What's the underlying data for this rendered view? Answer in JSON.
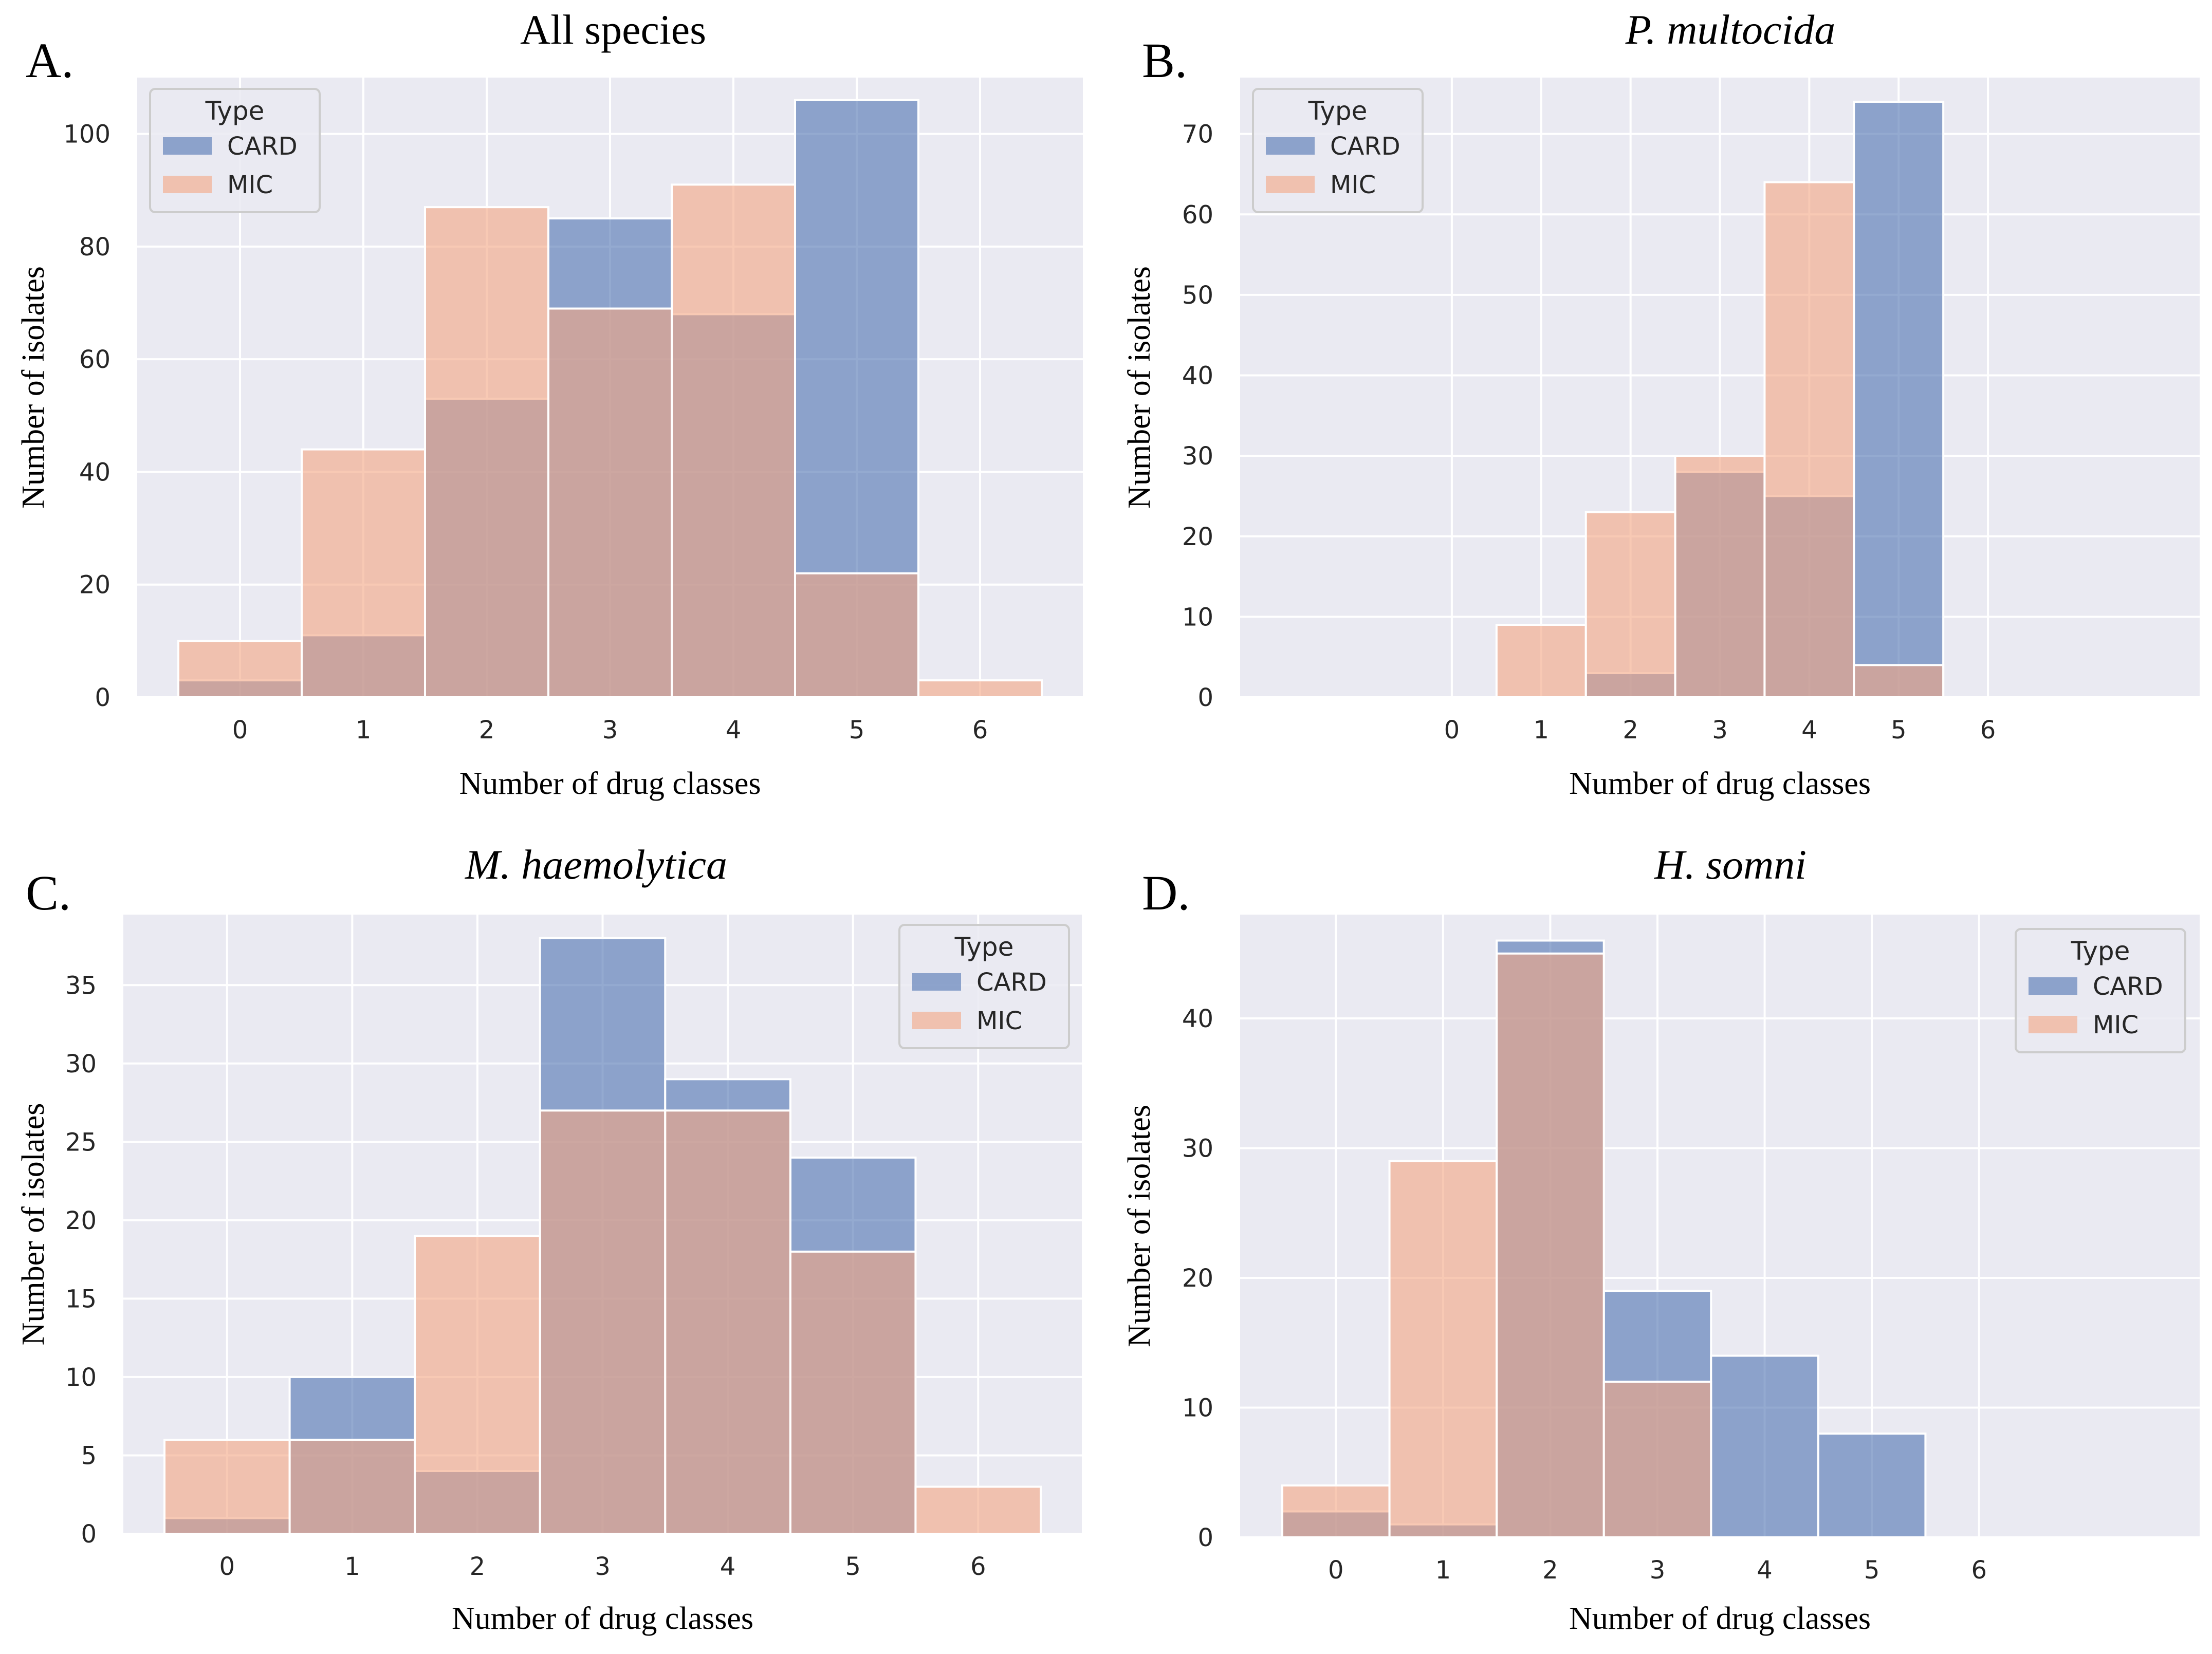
{
  "figure": {
    "legend_title": "Type",
    "colors": {
      "CARD": "#4c72b0",
      "MIC": "#f4a582",
      "plot_bg": "#eaeaf2",
      "grid": "#ffffff"
    }
  },
  "chart_data": [
    {
      "panel_label": "A.",
      "type": "bar",
      "title": "All species",
      "title_italic": false,
      "xlabel": "Number of drug classes",
      "ylabel": "Number of isolates",
      "categories": [
        "0",
        "1",
        "2",
        "3",
        "4",
        "5",
        "6"
      ],
      "series": [
        {
          "name": "CARD",
          "values": [
            3,
            11,
            53,
            85,
            68,
            106,
            0
          ]
        },
        {
          "name": "MIC",
          "values": [
            10,
            44,
            87,
            69,
            91,
            22,
            3
          ]
        }
      ],
      "yticks": [
        0,
        20,
        40,
        60,
        80,
        100
      ],
      "ylim": [
        0,
        110
      ],
      "legend_position": "top-left"
    },
    {
      "panel_label": "B.",
      "type": "bar",
      "title": "P. multocida",
      "title_italic": true,
      "xlabel": "Number of drug classes",
      "ylabel": "Number of isolates",
      "categories": [
        "0",
        "1",
        "2",
        "3",
        "4",
        "5",
        "6"
      ],
      "series": [
        {
          "name": "CARD",
          "values": [
            0,
            0,
            3,
            28,
            25,
            74,
            0
          ]
        },
        {
          "name": "MIC",
          "values": [
            0,
            9,
            23,
            30,
            64,
            4,
            0
          ]
        }
      ],
      "yticks": [
        0,
        10,
        20,
        30,
        40,
        50,
        60,
        70
      ],
      "ylim": [
        0,
        77
      ],
      "legend_position": "top-left"
    },
    {
      "panel_label": "C.",
      "type": "bar",
      "title": "M. haemolytica",
      "title_italic": true,
      "xlabel": "Number of drug classes",
      "ylabel": "Number of isolates",
      "categories": [
        "0",
        "1",
        "2",
        "3",
        "4",
        "5",
        "6"
      ],
      "series": [
        {
          "name": "CARD",
          "values": [
            1,
            10,
            4,
            38,
            29,
            24,
            0
          ]
        },
        {
          "name": "MIC",
          "values": [
            6,
            6,
            19,
            27,
            27,
            18,
            3
          ]
        }
      ],
      "yticks": [
        0,
        5,
        10,
        15,
        20,
        25,
        30,
        35
      ],
      "ylim": [
        0,
        39.5
      ],
      "legend_position": "top-right"
    },
    {
      "panel_label": "D.",
      "type": "bar",
      "title": "H. somni",
      "title_italic": true,
      "xlabel": "Number of drug classes",
      "ylabel": "Number of isolates",
      "categories": [
        "0",
        "1",
        "2",
        "3",
        "4",
        "5",
        "6"
      ],
      "series": [
        {
          "name": "CARD",
          "values": [
            2,
            1,
            46,
            19,
            14,
            8,
            0
          ]
        },
        {
          "name": "MIC",
          "values": [
            4,
            29,
            45,
            12,
            0,
            0,
            0
          ]
        }
      ],
      "yticks": [
        0,
        10,
        20,
        30,
        40
      ],
      "ylim": [
        0,
        48
      ],
      "legend_position": "top-right"
    }
  ]
}
